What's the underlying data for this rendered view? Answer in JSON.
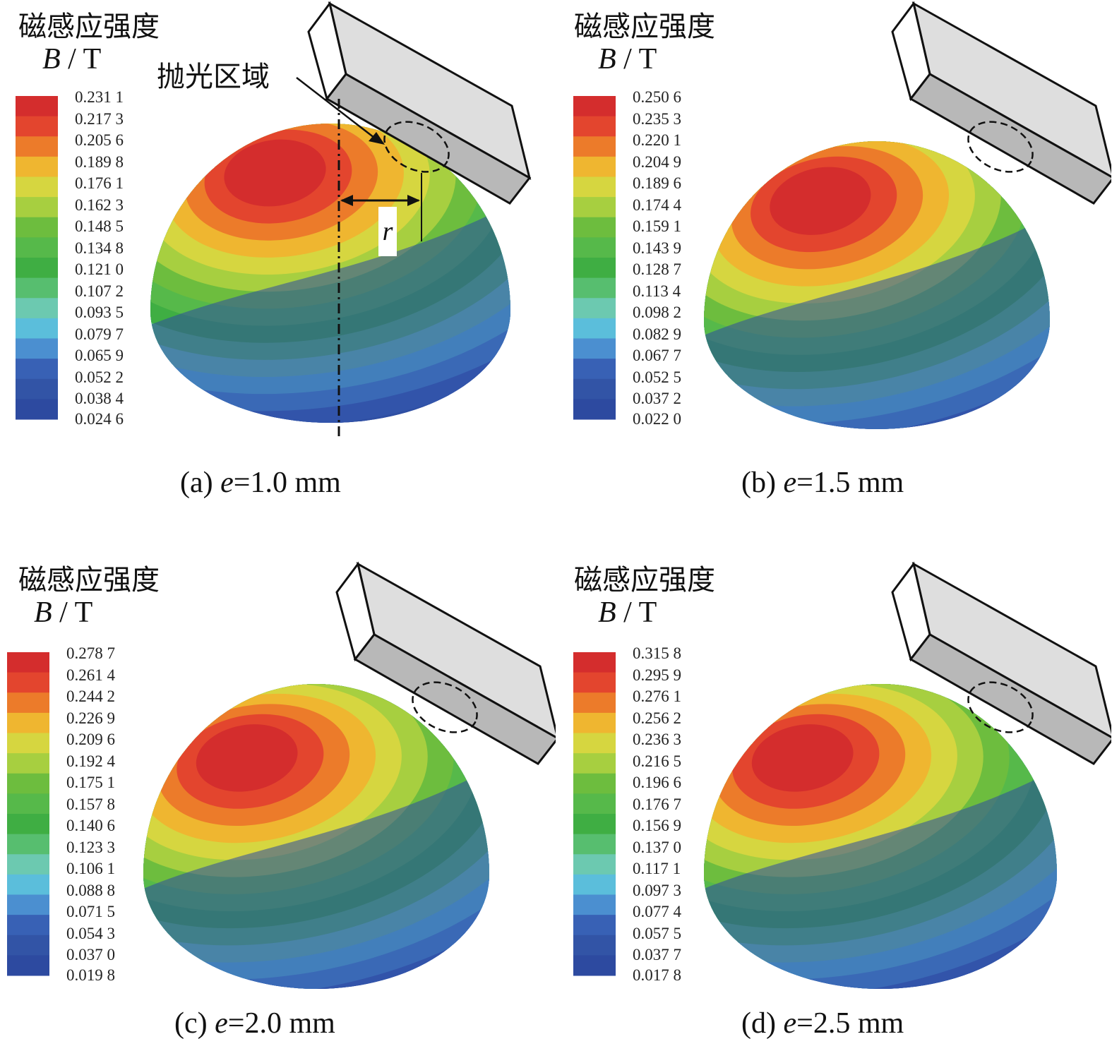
{
  "legend_title": "磁感应强度",
  "unit_var": "B",
  "unit_rest": " / T",
  "annotation_region": "抛光区域",
  "annotation_r": "r",
  "colors": [
    "#d42d2d",
    "#e3452e",
    "#ec7b2a",
    "#efb630",
    "#d6d640",
    "#a7cf40",
    "#6dbd3e",
    "#56b94a",
    "#3fae43",
    "#57be6f",
    "#6cc9b0",
    "#5bbedb",
    "#4b8fd0",
    "#3861b5",
    "#3254a6",
    "#2d4aa0"
  ],
  "panels": [
    {
      "id": "a",
      "cap_prefix": "(a) ",
      "cap_var": "e",
      "cap_value": "=1.0 mm",
      "ticks": [
        "0.231 1",
        "0.217 3",
        "0.205 6",
        "0.189 8",
        "0.176 1",
        "0.162 3",
        "0.148 5",
        "0.134 8",
        "0.121 0",
        "0.107 2",
        "0.093 5",
        "0.079 7",
        "0.065 9",
        "0.052 2",
        "0.038 4",
        "0.024 6"
      ]
    },
    {
      "id": "b",
      "cap_prefix": "(b) ",
      "cap_var": "e",
      "cap_value": "=1.5 mm",
      "ticks": [
        "0.250 6",
        "0.235 3",
        "0.220 1",
        "0.204 9",
        "0.189 6",
        "0.174 4",
        "0.159 1",
        "0.143 9",
        "0.128 7",
        "0.113 4",
        "0.098 2",
        "0.082 9",
        "0.067 7",
        "0.052 5",
        "0.037 2",
        "0.022 0"
      ]
    },
    {
      "id": "c",
      "cap_prefix": "(c) ",
      "cap_var": "e",
      "cap_value": "=2.0 mm",
      "ticks": [
        "0.278 7",
        "0.261 4",
        "0.244 2",
        "0.226 9",
        "0.209 6",
        "0.192 4",
        "0.175 1",
        "0.157 8",
        "0.140 6",
        "0.123 3",
        "0.106 1",
        "0.088 8",
        "0.071 5",
        "0.054 3",
        "0.037 0",
        "0.019 8"
      ]
    },
    {
      "id": "d",
      "cap_prefix": "(d) ",
      "cap_var": "e",
      "cap_value": "=2.5 mm",
      "ticks": [
        "0.315 8",
        "0.295 9",
        "0.276 1",
        "0.256 2",
        "0.236 3",
        "0.216 5",
        "0.196 6",
        "0.176 7",
        "0.156 9",
        "0.137 0",
        "0.117 1",
        "0.097 3",
        "0.077 4",
        "0.057 5",
        "0.037 7",
        "0.017 8"
      ]
    }
  ]
}
